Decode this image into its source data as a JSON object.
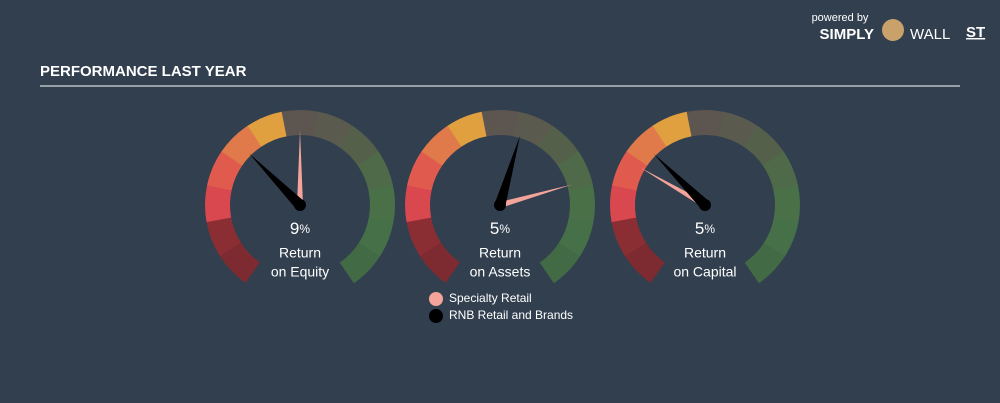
{
  "header": {
    "powered_by": "powered by",
    "brand_left": "SIMPLY",
    "brand_mid": "WALL",
    "brand_right": "ST",
    "title": "PERFORMANCE LAST YEAR"
  },
  "chart_data": {
    "type": "gauge",
    "series": [
      {
        "name": "Specialty Retail",
        "color": "#f4a49a"
      },
      {
        "name": "RNB Retail and Brands",
        "color": "#000000"
      }
    ],
    "gauges": [
      {
        "label_line1": "Return",
        "label_line2": "on Equity",
        "value": 9,
        "unit": "%",
        "industry": 13,
        "lim": [
          0,
          26
        ]
      },
      {
        "label_line1": "Return",
        "label_line2": "on Assets",
        "value": 5,
        "unit": "%",
        "industry": 6.8,
        "lim": [
          0,
          9
        ]
      },
      {
        "label_line1": "Return",
        "label_line2": "on Capital",
        "value": 5,
        "unit": "%",
        "industry": 4.25,
        "lim": [
          0,
          14.5
        ]
      }
    ]
  }
}
